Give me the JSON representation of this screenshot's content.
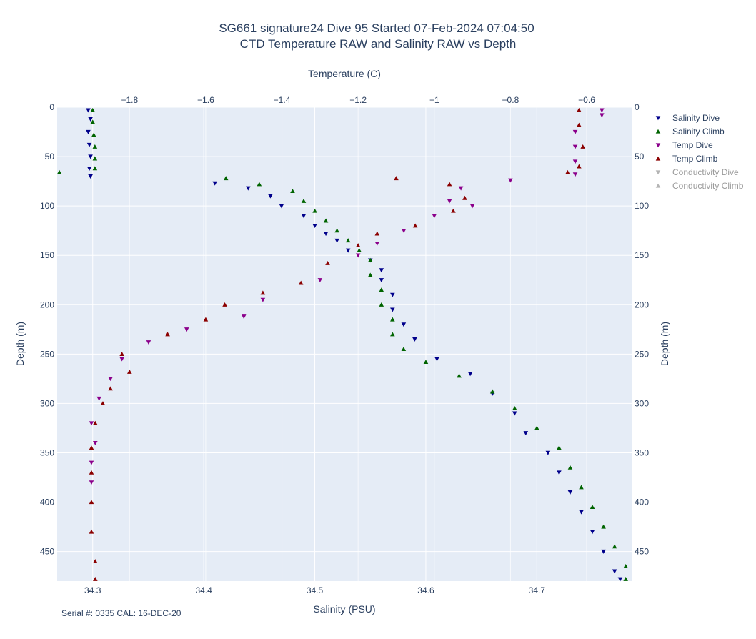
{
  "chart_data": {
    "type": "scatter",
    "title": "SG661 signature24 Dive 95 Started 07-Feb-2024 07:04:50",
    "subtitle": "CTD Temperature RAW and Salinity RAW vs Depth",
    "xlabel_bottom": "Salinity (PSU)",
    "xlabel_top": "Temperature (C)",
    "ylabel_left": "Depth (m)",
    "ylabel_right": "Depth (m)",
    "xlim_salinity": [
      34.268,
      34.786
    ],
    "xlim_temperature": [
      -1.99,
      -0.48
    ],
    "ylim_depth": [
      0,
      480
    ],
    "y_reversed": true,
    "grid": true,
    "legend_position": "top-right",
    "xticks_salinity": [
      34.3,
      34.4,
      34.5,
      34.6,
      34.7
    ],
    "xtick_labels_salinity": [
      "34.3",
      "34.4",
      "34.5",
      "34.6",
      "34.7"
    ],
    "xticks_temperature": [
      -1.8,
      -1.6,
      -1.4,
      -1.2,
      -1.0,
      -0.8,
      -0.6
    ],
    "xtick_labels_temperature": [
      "−1.8",
      "−1.6",
      "−1.4",
      "−1.2",
      "−1",
      "−0.8",
      "−0.6"
    ],
    "yticks": [
      0,
      50,
      100,
      150,
      200,
      250,
      300,
      350,
      400,
      450
    ],
    "ytick_labels": [
      "0",
      "50",
      "100",
      "150",
      "200",
      "250",
      "300",
      "350",
      "400",
      "450"
    ],
    "series": [
      {
        "name": "Salinity Dive",
        "axis": "salinity",
        "marker": "triangle-down",
        "color": "#00008b",
        "visible": true,
        "points": [
          [
            34.296,
            3
          ],
          [
            34.298,
            12
          ],
          [
            34.296,
            25
          ],
          [
            34.297,
            38
          ],
          [
            34.298,
            50
          ],
          [
            34.297,
            62
          ],
          [
            34.298,
            70
          ],
          [
            34.41,
            77
          ],
          [
            34.44,
            82
          ],
          [
            34.46,
            90
          ],
          [
            34.47,
            100
          ],
          [
            34.49,
            110
          ],
          [
            34.5,
            120
          ],
          [
            34.51,
            128
          ],
          [
            34.52,
            135
          ],
          [
            34.53,
            145
          ],
          [
            34.55,
            155
          ],
          [
            34.56,
            165
          ],
          [
            34.56,
            175
          ],
          [
            34.57,
            190
          ],
          [
            34.57,
            205
          ],
          [
            34.58,
            220
          ],
          [
            34.59,
            235
          ],
          [
            34.61,
            255
          ],
          [
            34.64,
            270
          ],
          [
            34.66,
            290
          ],
          [
            34.68,
            310
          ],
          [
            34.69,
            330
          ],
          [
            34.71,
            350
          ],
          [
            34.72,
            370
          ],
          [
            34.73,
            390
          ],
          [
            34.74,
            410
          ],
          [
            34.75,
            430
          ],
          [
            34.76,
            450
          ],
          [
            34.77,
            470
          ],
          [
            34.775,
            478
          ]
        ]
      },
      {
        "name": "Salinity Climb",
        "axis": "salinity",
        "marker": "triangle-up",
        "color": "#006400",
        "visible": true,
        "points": [
          [
            34.3,
            3
          ],
          [
            34.3,
            15
          ],
          [
            34.301,
            28
          ],
          [
            34.302,
            40
          ],
          [
            34.302,
            52
          ],
          [
            34.302,
            62
          ],
          [
            34.27,
            66
          ],
          [
            34.42,
            72
          ],
          [
            34.45,
            78
          ],
          [
            34.48,
            85
          ],
          [
            34.49,
            95
          ],
          [
            34.5,
            105
          ],
          [
            34.51,
            115
          ],
          [
            34.52,
            125
          ],
          [
            34.53,
            135
          ],
          [
            34.54,
            145
          ],
          [
            34.55,
            155
          ],
          [
            34.55,
            170
          ],
          [
            34.56,
            185
          ],
          [
            34.56,
            200
          ],
          [
            34.57,
            215
          ],
          [
            34.57,
            230
          ],
          [
            34.58,
            245
          ],
          [
            34.6,
            258
          ],
          [
            34.63,
            272
          ],
          [
            34.66,
            288
          ],
          [
            34.68,
            305
          ],
          [
            34.7,
            325
          ],
          [
            34.72,
            345
          ],
          [
            34.73,
            365
          ],
          [
            34.74,
            385
          ],
          [
            34.75,
            405
          ],
          [
            34.76,
            425
          ],
          [
            34.77,
            445
          ],
          [
            34.78,
            465
          ],
          [
            34.78,
            478
          ]
        ]
      },
      {
        "name": "Temp Dive",
        "axis": "temperature",
        "marker": "triangle-down",
        "color": "#8b008b",
        "visible": true,
        "points": [
          [
            -0.56,
            3
          ],
          [
            -0.56,
            8
          ],
          [
            -0.63,
            25
          ],
          [
            -0.63,
            40
          ],
          [
            -0.63,
            55
          ],
          [
            -0.63,
            68
          ],
          [
            -0.8,
            74
          ],
          [
            -0.93,
            82
          ],
          [
            -0.96,
            95
          ],
          [
            -0.9,
            100
          ],
          [
            -1.0,
            110
          ],
          [
            -1.08,
            125
          ],
          [
            -1.15,
            138
          ],
          [
            -1.2,
            150
          ],
          [
            -1.3,
            175
          ],
          [
            -1.45,
            195
          ],
          [
            -1.5,
            212
          ],
          [
            -1.65,
            225
          ],
          [
            -1.75,
            238
          ],
          [
            -1.82,
            255
          ],
          [
            -1.85,
            275
          ],
          [
            -1.88,
            295
          ],
          [
            -1.9,
            320
          ],
          [
            -1.89,
            340
          ],
          [
            -1.9,
            360
          ],
          [
            -1.9,
            380
          ]
        ]
      },
      {
        "name": "Temp Climb",
        "axis": "temperature",
        "marker": "triangle-up",
        "color": "#8b0000",
        "visible": true,
        "points": [
          [
            -0.62,
            3
          ],
          [
            -0.62,
            18
          ],
          [
            -0.61,
            40
          ],
          [
            -0.62,
            60
          ],
          [
            -0.65,
            66
          ],
          [
            -1.1,
            72
          ],
          [
            -0.96,
            78
          ],
          [
            -0.92,
            92
          ],
          [
            -0.95,
            105
          ],
          [
            -1.05,
            120
          ],
          [
            -1.15,
            128
          ],
          [
            -1.2,
            140
          ],
          [
            -1.28,
            158
          ],
          [
            -1.35,
            178
          ],
          [
            -1.45,
            188
          ],
          [
            -1.55,
            200
          ],
          [
            -1.6,
            215
          ],
          [
            -1.7,
            230
          ],
          [
            -1.82,
            250
          ],
          [
            -1.8,
            268
          ],
          [
            -1.85,
            285
          ],
          [
            -1.87,
            300
          ],
          [
            -1.89,
            320
          ],
          [
            -1.9,
            345
          ],
          [
            -1.9,
            370
          ],
          [
            -1.9,
            400
          ],
          [
            -1.9,
            430
          ],
          [
            -1.89,
            460
          ],
          [
            -1.89,
            478
          ]
        ]
      },
      {
        "name": "Conductivity Dive",
        "axis": "none",
        "marker": "triangle-down",
        "color": "#b4b4b4",
        "visible": false,
        "points": []
      },
      {
        "name": "Conductivity Climb",
        "axis": "none",
        "marker": "triangle-up",
        "color": "#b4b4b4",
        "visible": false,
        "points": []
      }
    ],
    "footnote": "Serial #: 0335  CAL: 16-DEC-20",
    "plot_bgcolor": "#e5ecf6",
    "grid_color": "#ffffff"
  }
}
